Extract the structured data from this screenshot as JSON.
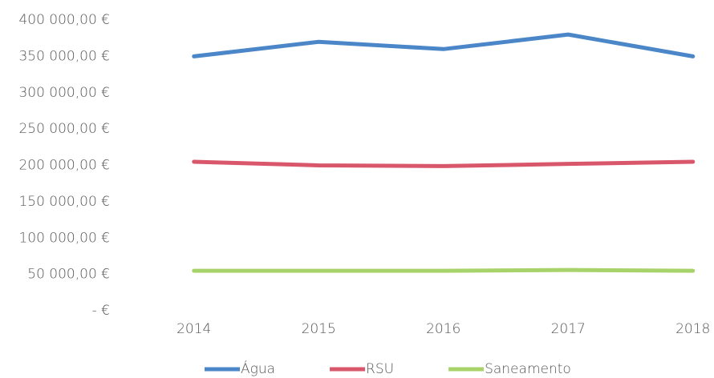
{
  "chart_data": {
    "type": "line",
    "categories": [
      "2014",
      "2015",
      "2016",
      "2017",
      "2018"
    ],
    "series": [
      {
        "name": "Água",
        "color": "#4a86c8",
        "values": [
          350000,
          370000,
          360000,
          380000,
          350000
        ]
      },
      {
        "name": "RSU",
        "color": "#d9576a",
        "values": [
          205000,
          200000,
          199000,
          202000,
          205000
        ]
      },
      {
        "name": "Saneamento",
        "color": "#a8d26a",
        "values": [
          55000,
          55000,
          55000,
          56000,
          55000
        ]
      }
    ],
    "ylim": [
      0,
      400000
    ],
    "yticks": [
      {
        "value": 0,
        "label": "-  €"
      },
      {
        "value": 50000,
        "label": "50 000,00 €"
      },
      {
        "value": 100000,
        "label": "100 000,00 €"
      },
      {
        "value": 150000,
        "label": "150 000,00 €"
      },
      {
        "value": 200000,
        "label": "200 000,00 €"
      },
      {
        "value": 250000,
        "label": "250 000,00 €"
      },
      {
        "value": 300000,
        "label": "300 000,00 €"
      },
      {
        "value": 350000,
        "label": "350 000,00 €"
      },
      {
        "value": 400000,
        "label": "400 000,00 €"
      }
    ],
    "grid": false,
    "legend": "bottom"
  }
}
